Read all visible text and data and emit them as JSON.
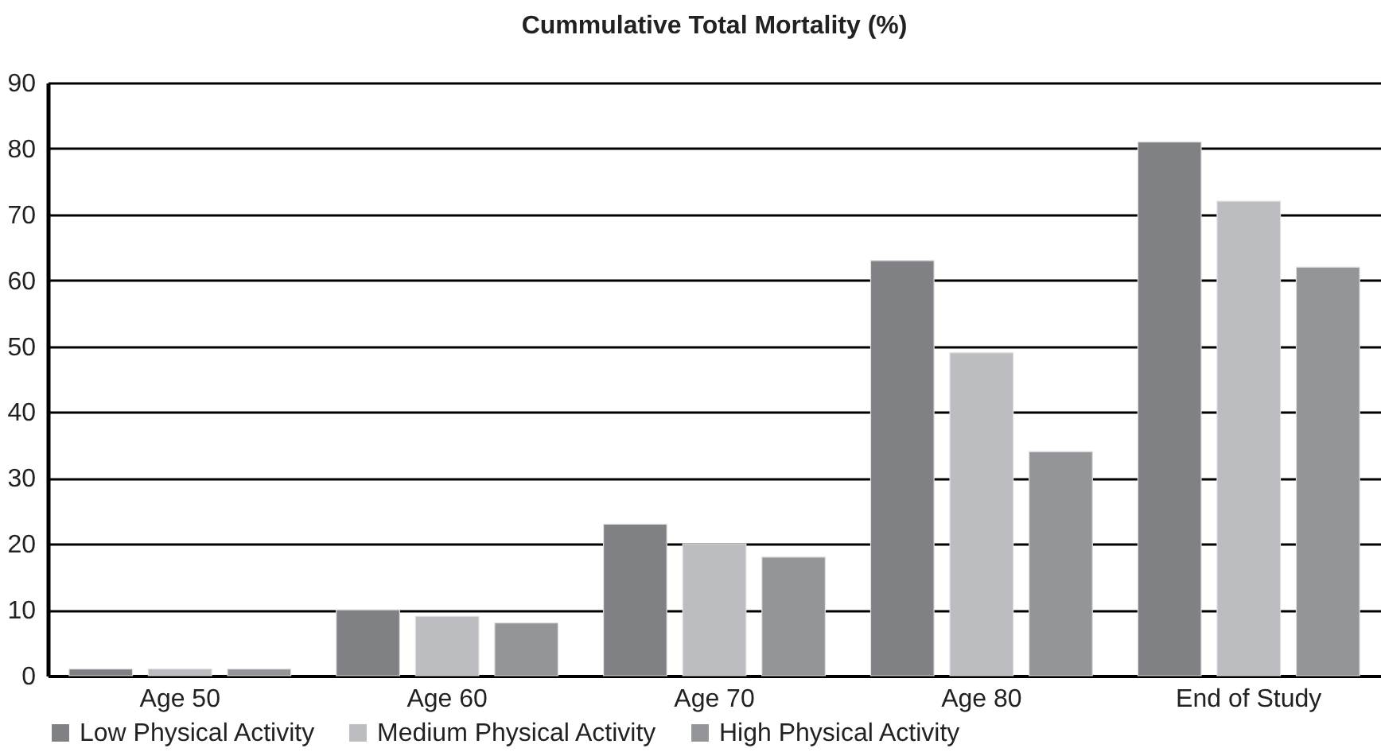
{
  "chart_data": {
    "type": "bar",
    "title": "Cummulative Total Mortality (%)",
    "categories": [
      "Age 50",
      "Age 60",
      "Age 70",
      "Age 80",
      "End of Study"
    ],
    "series": [
      {
        "name": "Low Physical Activity",
        "color": "#808185",
        "values": [
          1,
          10,
          23,
          63,
          81
        ]
      },
      {
        "name": "Medium Physical Activity",
        "color": "#bcbdc0",
        "values": [
          1,
          9,
          20,
          49,
          72
        ]
      },
      {
        "name": "High Physical Activity",
        "color": "#949598",
        "values": [
          1,
          8,
          18,
          34,
          62
        ]
      }
    ],
    "ylim": [
      0,
      90
    ],
    "yticks": [
      0,
      10,
      20,
      30,
      40,
      50,
      60,
      70,
      80,
      90
    ],
    "grid": "y",
    "legend": "bottom"
  }
}
